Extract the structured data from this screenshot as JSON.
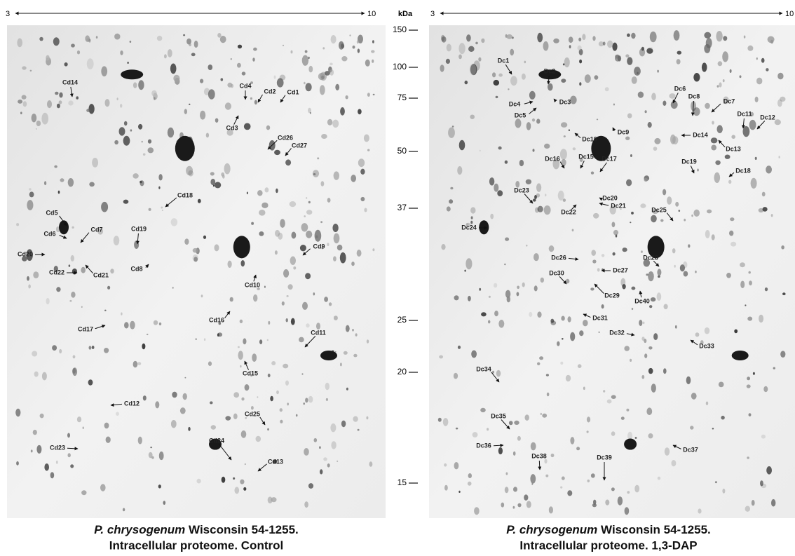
{
  "ph_axis": {
    "left": {
      "start": "3",
      "end": "10"
    },
    "right": {
      "start": "3",
      "end": "10"
    }
  },
  "mw_scale": {
    "unit": "kDa",
    "markers": [
      "150",
      "100",
      "75",
      "50",
      "37",
      "25",
      "20",
      "15"
    ]
  },
  "panels": [
    {
      "labels": [
        "Cd14",
        "Cd4",
        "Cd2",
        "Cd1",
        "Cd3",
        "Cd26",
        "Cd27",
        "Cd18",
        "Cd5",
        "Cd7",
        "Cd19",
        "Cd6",
        "Cd20",
        "Cd9",
        "Cd22",
        "Cd21",
        "Cd8",
        "Cd10",
        "Cd16",
        "Cd17",
        "Cd11",
        "Cd15",
        "Cd12",
        "Cd25",
        "Cd24",
        "Cd23",
        "Cd13"
      ],
      "caption": {
        "species": "P. chrysogenum",
        "strain": "Wisconsin 54-1255.",
        "line2": "Intracellular proteome. Control"
      }
    },
    {
      "labels": [
        "Dc1",
        "Dc2",
        "Dc4",
        "Dc3",
        "Dc5",
        "Dc6",
        "Dc8",
        "Dc7",
        "Dc11",
        "Dc12",
        "Dc9",
        "Dc10",
        "Dc14",
        "Dc13",
        "Dc16",
        "Dc15",
        "Dc17",
        "Dc19",
        "Dc18",
        "Dc23",
        "Dc20",
        "Dc21",
        "Dc22",
        "Dc25",
        "Dc24",
        "Dc26",
        "Dc28",
        "Dc27",
        "Dc30",
        "Dc29",
        "Dc40",
        "Dc31",
        "Dc32",
        "Dc33",
        "Dc34",
        "Dc35",
        "Dc36",
        "Dc37",
        "Dc38",
        "Dc39"
      ],
      "caption": {
        "species": "P. chrysogenum",
        "strain": "Wisconsin 54-1255.",
        "line2": "Intracellular proteome. 1,3-DAP"
      }
    }
  ]
}
